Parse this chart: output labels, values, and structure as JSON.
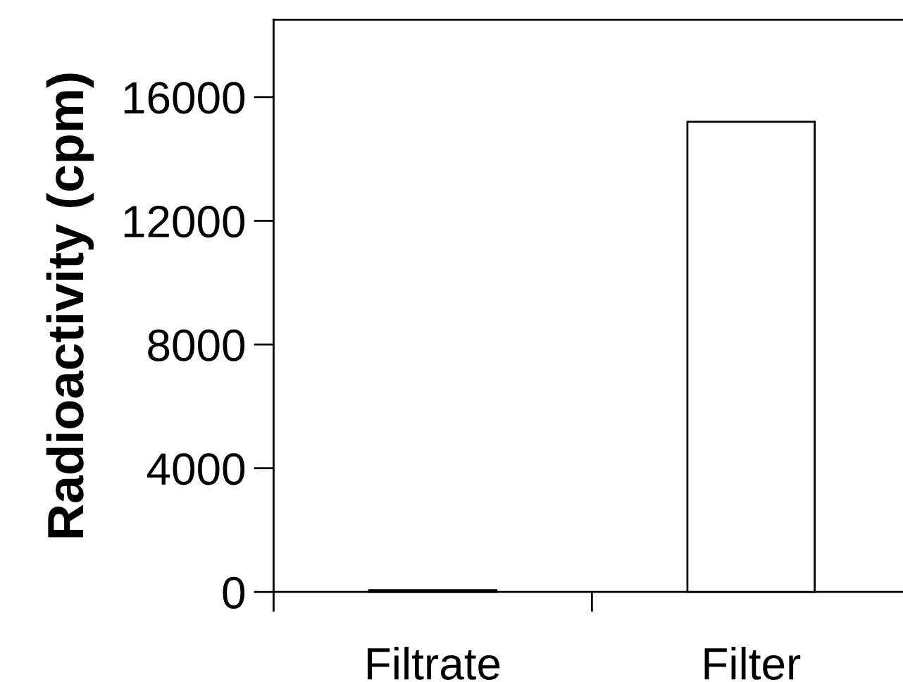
{
  "chart_data": {
    "type": "bar",
    "ylabel": "Radioactivity (cpm)",
    "categories": [
      "Filtrate",
      "Filter"
    ],
    "values": [
      60,
      15200
    ],
    "color": "#ffffff",
    "ylim": [
      0,
      18500
    ],
    "yticks": [
      0,
      4000,
      8000,
      12000,
      16000
    ],
    "grid": false,
    "legend": false
  }
}
